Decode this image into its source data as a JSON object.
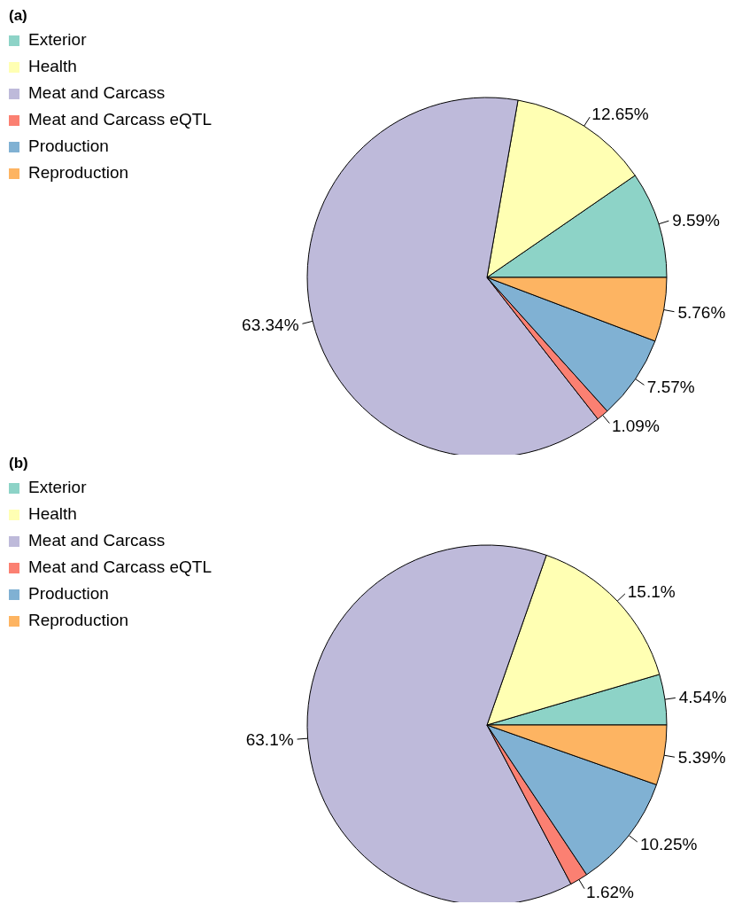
{
  "chart_data": [
    {
      "type": "pie",
      "title": "(a)",
      "categories": [
        "Exterior",
        "Health",
        "Meat and Carcass",
        "Meat and Carcass eQTL",
        "Production",
        "Reproduction"
      ],
      "values": [
        9.59,
        12.65,
        63.34,
        1.09,
        7.57,
        5.76
      ],
      "colors": [
        "#8dd3c7",
        "#ffffb3",
        "#bebada",
        "#fb8072",
        "#80b1d3",
        "#fdb462"
      ],
      "value_labels": [
        "9.59%",
        "12.65%",
        "63.34%",
        "1.09%",
        "7.57%",
        "5.76%"
      ],
      "legend": "top left"
    },
    {
      "type": "pie",
      "title": "(b)",
      "categories": [
        "Exterior",
        "Health",
        "Meat and Carcass",
        "Meat and Carcass eQTL",
        "Production",
        "Reproduction"
      ],
      "values": [
        4.54,
        15.1,
        63.1,
        1.62,
        10.25,
        5.39
      ],
      "colors": [
        "#8dd3c7",
        "#ffffb3",
        "#bebada",
        "#fb8072",
        "#80b1d3",
        "#fdb462"
      ],
      "value_labels": [
        "4.54%",
        "15.1%",
        "63.1%",
        "1.62%",
        "10.25%",
        "5.39%"
      ],
      "legend": "top left"
    }
  ]
}
